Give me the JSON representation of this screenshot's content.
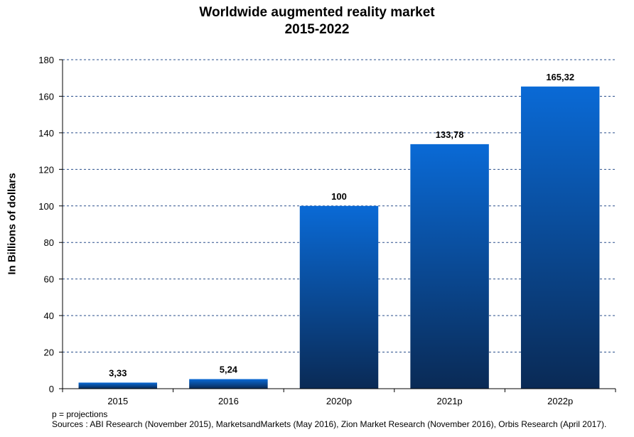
{
  "chart_data": {
    "type": "bar",
    "title": "Worldwide augmented reality market",
    "subtitle": "2015-2022",
    "ylabel": "In Billions of dollars",
    "xlabel": "",
    "categories": [
      "2015",
      "2016",
      "2020p",
      "2021p",
      "2022p"
    ],
    "values": [
      3.33,
      5.24,
      100,
      133.78,
      165.32
    ],
    "value_labels": [
      "3,33",
      "5,24",
      "100",
      "133,78",
      "165,32"
    ],
    "ylim": [
      0,
      180
    ],
    "yticks": [
      0,
      20,
      40,
      60,
      80,
      100,
      120,
      140,
      160,
      180
    ],
    "grid": true,
    "legend": "none",
    "bar_color_top": "#0a6ad6",
    "bar_color_bottom": "#0a2a55"
  },
  "notes": {
    "line1": "p = projections",
    "line2": "Sources : ABI Research (November 2015), MarketsandMarkets (May 2016), Zion Market Research (November 2016), Orbis Research (April 2017)."
  }
}
